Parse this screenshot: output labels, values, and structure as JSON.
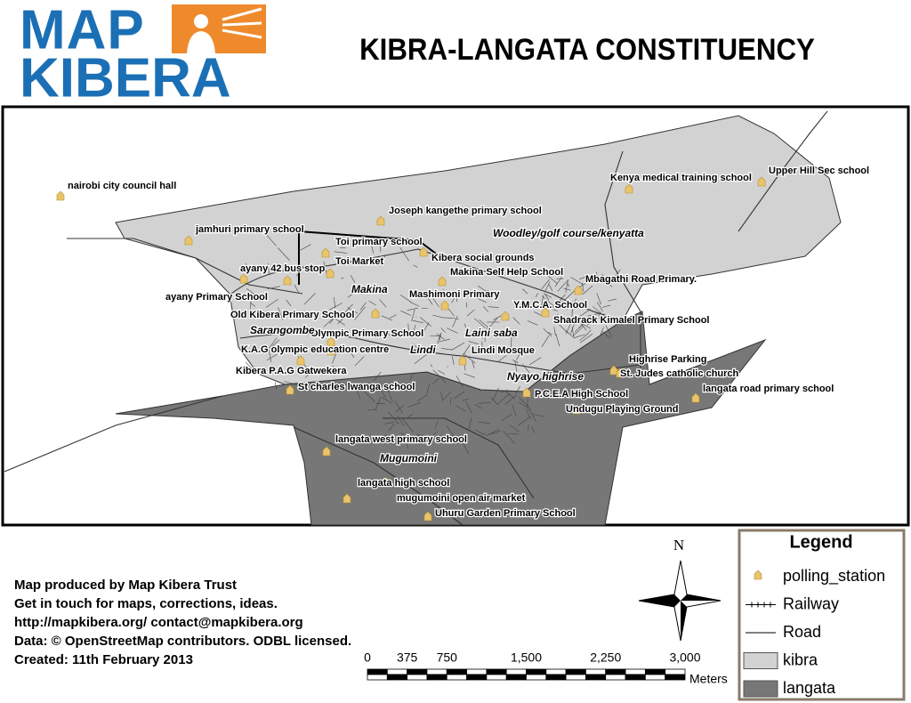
{
  "logo": {
    "line1": "MAP",
    "line2": "KIBERA"
  },
  "title": "KIBRA-LANGATA CONSTITUENCY",
  "map": {
    "polling_stations": [
      "nairobi city council hall",
      "Kenya medical training school",
      "Upper Hill Sec school",
      "Joseph kangethe primary school",
      "jamhuri primary school",
      "Toi primary school",
      "Kibera social grounds",
      "Toi Market",
      "ayany 42 bus stop",
      "Makina Self Help School",
      "Mbagathi Road Primary.",
      "ayany Primary School",
      "Mashimoni Primary",
      "Y.M.C.A. School",
      "Old Kibera Primary School",
      "Shadrack Kimalel Primary School",
      "Olympic Primary School",
      "K.A.G olympic education centre",
      "Lindi Mosque",
      "Highrise Parking",
      "Kibera P.A.G Gatwekera",
      "St. Judes catholic church",
      "St charles lwanga school",
      "P.C.E.A High School",
      "langata road primary school",
      "Undugu Playing Ground",
      "langata west primary school",
      "langata high school",
      "mugumoini open air market",
      "Uhuru Garden Primary School"
    ],
    "areas": [
      "Woodley/golf course/kenyatta",
      "Makina",
      "Sarangombe",
      "Lindi",
      "Laini saba",
      "Nyayo highrise",
      "Mugumoini"
    ]
  },
  "credits": [
    "Map produced by Map Kibera Trust",
    "Get in touch for maps, corrections, ideas.",
    "http://mapkibera.org/ contact@mapkibera.org",
    "Data: © OpenStreetMap contributors. ODBL licensed.",
    "Created: 11th February 2013"
  ],
  "north": "N",
  "scale_bar": {
    "labels": [
      "0",
      "375",
      "750",
      "1,500",
      "2,250",
      "3,000"
    ],
    "unit": "Meters"
  },
  "legend": {
    "title": "Legend",
    "items": [
      "polling_station",
      "Railway",
      "Road",
      "kibra",
      "langata"
    ]
  }
}
